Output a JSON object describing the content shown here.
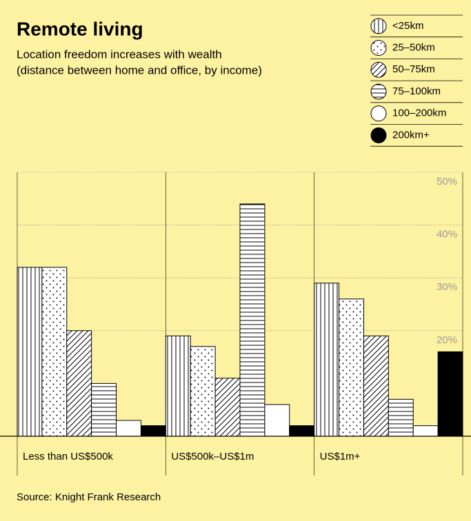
{
  "chart_data": {
    "type": "bar",
    "title": "Remote living",
    "subtitle": [
      "Location freedom increases with wealth",
      "(distance between home and office, by income)"
    ],
    "source": "Source: Knight Frank Research",
    "categories": [
      "Less than US$500k",
      "US$500k–US$1m",
      "US$1m+"
    ],
    "series": [
      {
        "name": "<25km",
        "pattern": "vertical",
        "values": [
          32,
          19,
          29
        ]
      },
      {
        "name": "25–50km",
        "pattern": "dots",
        "values": [
          32,
          17,
          26
        ]
      },
      {
        "name": "50–75km",
        "pattern": "diagonal",
        "values": [
          20,
          11,
          19
        ]
      },
      {
        "name": "75–100km",
        "pattern": "horizontal",
        "values": [
          10,
          44,
          7
        ]
      },
      {
        "name": "100–200km",
        "pattern": "white",
        "values": [
          3,
          6,
          2
        ]
      },
      {
        "name": "200km+",
        "pattern": "black",
        "values": [
          2,
          2,
          16
        ]
      }
    ],
    "ylim": [
      0,
      50
    ],
    "yticks": [
      {
        "value": 20,
        "label": "20%"
      },
      {
        "value": 30,
        "label": "30%"
      },
      {
        "value": 40,
        "label": "40%"
      },
      {
        "value": 50,
        "label": "50%"
      }
    ],
    "grid": true,
    "background": "#fdf2a2"
  }
}
